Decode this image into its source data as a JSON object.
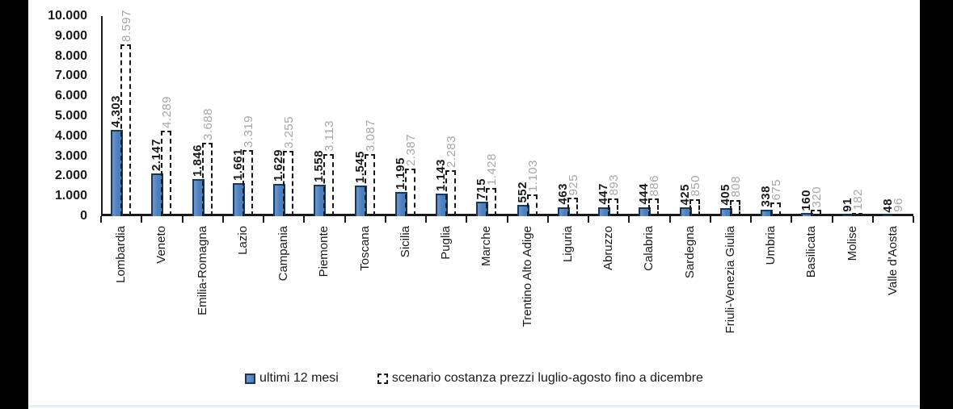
{
  "chart_data": {
    "type": "bar",
    "title": "",
    "xlabel": "",
    "ylabel": "",
    "grid": false,
    "legend_position": "bottom",
    "ylim": [
      0,
      10000
    ],
    "y_tick_step": 1000,
    "y_tick_labels": [
      "10.000",
      "9.000",
      "8.000",
      "7.000",
      "6.000",
      "5.000",
      "4.000",
      "3.000",
      "2.000",
      "1.000",
      "0"
    ],
    "number_format": "thousands-dot",
    "categories": [
      "Lombardia",
      "Veneto",
      "Emilia-Romagna",
      "Lazio",
      "Campania",
      "Piemonte",
      "Toscana",
      "Sicilia",
      "Puglia",
      "Marche",
      "Trentino Alto Adige",
      "Liguria",
      "Abruzzo",
      "Calabria",
      "Sardegna",
      "Friuli-Venezia Giulia",
      "Umbria",
      "Basilicata",
      "Molise",
      "Valle d'Aosta"
    ],
    "series": [
      {
        "name": "ultimi 12 mesi",
        "style": "solid",
        "fill_color": "#4a7ebd",
        "fill_color_light": "#6d97cc",
        "border_color": "#17375e",
        "label_color": "#1a1a1a",
        "values": [
          4303,
          2147,
          1846,
          1661,
          1629,
          1558,
          1545,
          1195,
          1143,
          715,
          552,
          463,
          447,
          444,
          425,
          405,
          338,
          160,
          91,
          48
        ],
        "value_labels": [
          "4.303",
          "2.147",
          "1.846",
          "1.661",
          "1.629",
          "1.558",
          "1.545",
          "1.195",
          "1.143",
          "715",
          "552",
          "463",
          "447",
          "444",
          "425",
          "405",
          "338",
          "160",
          "91",
          "48"
        ]
      },
      {
        "name": "scenario costanza prezzi luglio-agosto fino a dicembre",
        "style": "dashed-outline",
        "fill_color": "transparent",
        "border_color": "#1a1a1a",
        "label_color": "#a6a6a6",
        "values": [
          8597,
          4289,
          3688,
          3319,
          3255,
          3113,
          3087,
          2387,
          2283,
          1428,
          1103,
          925,
          893,
          886,
          850,
          808,
          675,
          320,
          182,
          96
        ],
        "value_labels": [
          "8.597",
          "4.289",
          "3.688",
          "3.319",
          "3.255",
          "3.113",
          "3.087",
          "2.387",
          "2.283",
          "1.428",
          "1.103",
          "925",
          "893",
          "886",
          "850",
          "808",
          "675",
          "320",
          "182",
          "96"
        ]
      }
    ]
  },
  "colors": {
    "frame": "#000000",
    "background": "#ffffff",
    "axis": "#1a1a1a",
    "bottom_rule": "#e7eef2"
  }
}
